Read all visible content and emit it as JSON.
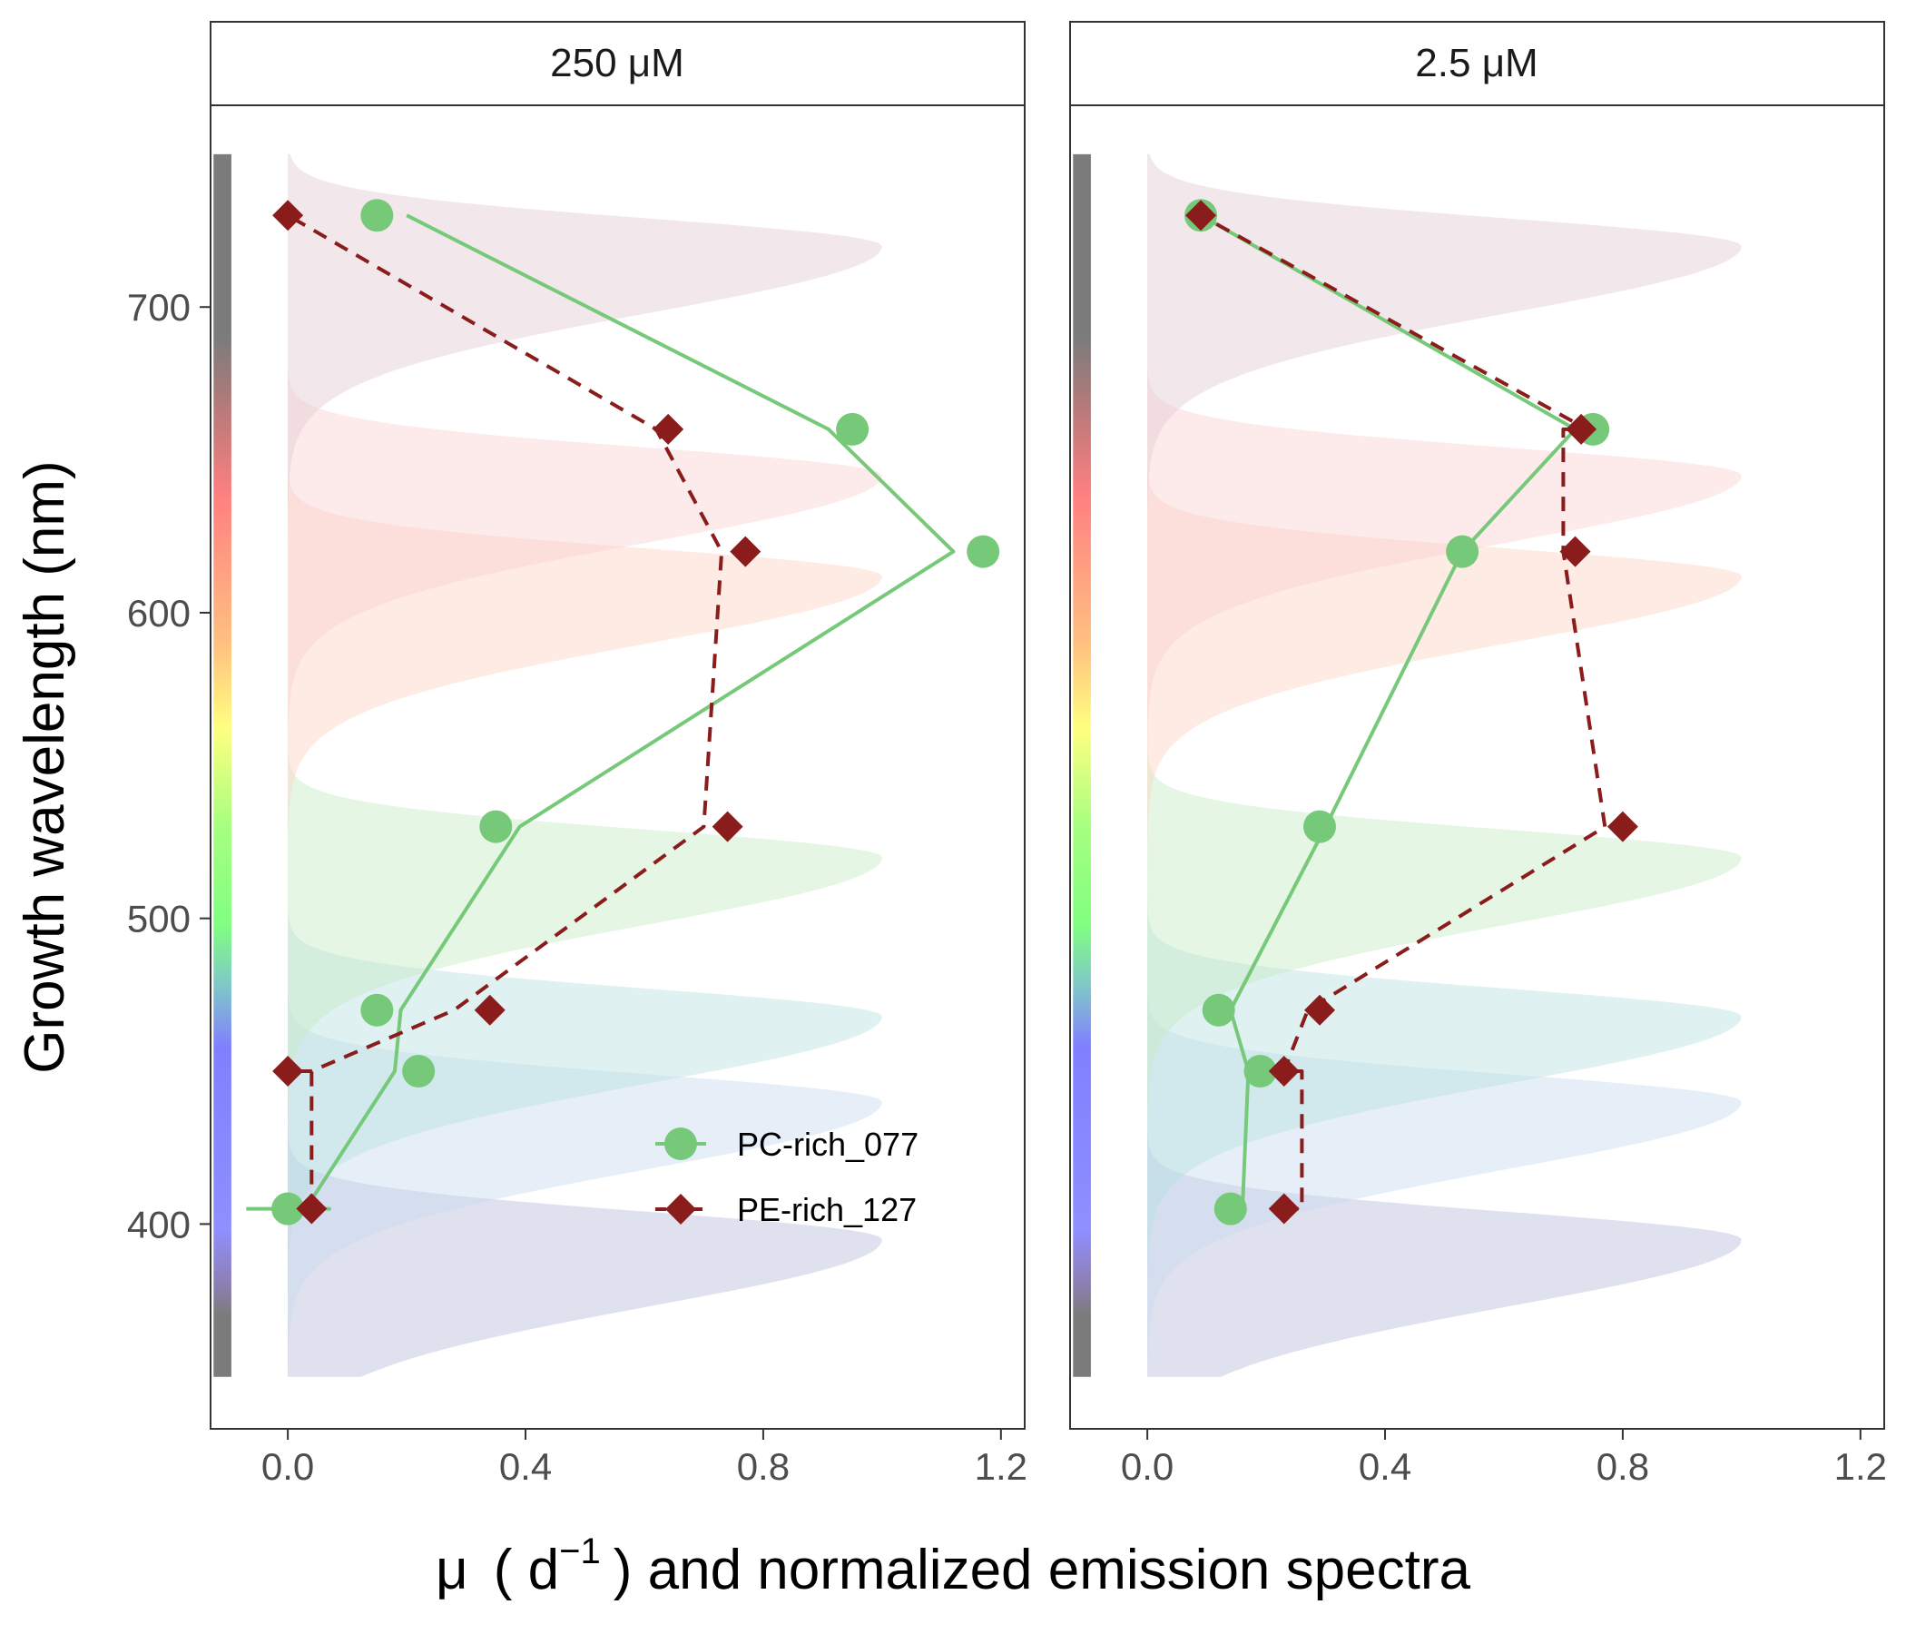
{
  "chart_data": {
    "type": "line",
    "ylabel": "Growth wavelength (nm)",
    "xlabel_parts": [
      "μ",
      "( d",
      "−1",
      ") and normalized emission spectra"
    ],
    "xlim": [
      -0.13,
      1.24
    ],
    "ylim": [
      333,
      766
    ],
    "xticks": [
      0.0,
      0.4,
      0.8,
      1.2
    ],
    "xtick_labels": [
      "0.0",
      "0.4",
      "0.8",
      "1.2"
    ],
    "yticks": [
      400,
      500,
      600,
      700
    ],
    "ytick_labels": [
      "400",
      "500",
      "600",
      "700"
    ],
    "grid": false,
    "legend_placement": "lower-right of left panel",
    "wavelength_bar_range": [
      350,
      750
    ],
    "spectra": [
      {
        "peak": 395,
        "color": "#b8bdd9"
      },
      {
        "peak": 440,
        "color": "#c8dcf0"
      },
      {
        "peak": 468,
        "color": "#b8e0e0"
      },
      {
        "peak": 520,
        "color": "#c6ecc3"
      },
      {
        "peak": 612,
        "color": "#fcd3c2"
      },
      {
        "peak": 645,
        "color": "#fbd0d0"
      },
      {
        "peak": 720,
        "color": "#e3ccd3"
      }
    ],
    "series_styles": [
      {
        "color": "#77c97a",
        "marker": "circle",
        "line": "solid"
      },
      {
        "color": "#8b1c1c",
        "marker": "diamond",
        "line": "dashed"
      }
    ],
    "panels": [
      {
        "strip": "250 μM",
        "series": [
          {
            "name": "PC-rich_077",
            "points": [
              [
                0.0,
                405
              ],
              [
                0.22,
                450
              ],
              [
                0.15,
                470
              ],
              [
                0.35,
                530
              ],
              [
                1.17,
                620
              ],
              [
                0.95,
                660
              ],
              [
                0.15,
                730
              ]
            ],
            "fit": [
              [
                -0.07,
                405
              ],
              [
                0.07,
                405
              ],
              [
                0.03,
                405
              ],
              [
                0.18,
                450
              ],
              [
                0.19,
                470
              ],
              [
                0.39,
                530
              ],
              [
                1.12,
                620
              ],
              [
                0.91,
                660
              ],
              [
                0.2,
                730
              ]
            ]
          },
          {
            "name": "PE-rich_127",
            "points": [
              [
                0.04,
                405
              ],
              [
                0.0,
                450
              ],
              [
                0.34,
                470
              ],
              [
                0.74,
                530
              ],
              [
                0.77,
                620
              ],
              [
                0.64,
                660
              ],
              [
                0.0,
                730
              ]
            ],
            "fit": [
              [
                0.04,
                405
              ],
              [
                0.04,
                450
              ],
              [
                0.0,
                450
              ],
              [
                0.04,
                450
              ],
              [
                0.28,
                470
              ],
              [
                0.7,
                530
              ],
              [
                0.73,
                620
              ],
              [
                0.62,
                660
              ],
              [
                0.0,
                730
              ]
            ]
          }
        ]
      },
      {
        "strip": "2.5 μM",
        "series": [
          {
            "name": "PC-rich_077",
            "points": [
              [
                0.14,
                405
              ],
              [
                0.19,
                450
              ],
              [
                0.12,
                470
              ],
              [
                0.29,
                530
              ],
              [
                0.53,
                620
              ],
              [
                0.75,
                660
              ],
              [
                0.09,
                730
              ]
            ],
            "fit": [
              [
                0.16,
                405
              ],
              [
                0.17,
                450
              ],
              [
                0.14,
                470
              ],
              [
                0.3,
                530
              ],
              [
                0.53,
                620
              ],
              [
                0.72,
                660
              ],
              [
                0.09,
                730
              ]
            ]
          },
          {
            "name": "PE-rich_127",
            "points": [
              [
                0.23,
                405
              ],
              [
                0.23,
                450
              ],
              [
                0.29,
                470
              ],
              [
                0.8,
                530
              ],
              [
                0.72,
                620
              ],
              [
                0.73,
                660
              ],
              [
                0.09,
                730
              ]
            ],
            "fit": [
              [
                0.23,
                405
              ],
              [
                0.26,
                405
              ],
              [
                0.26,
                450
              ],
              [
                0.23,
                450
              ],
              [
                0.27,
                470
              ],
              [
                0.77,
                530
              ],
              [
                0.7,
                620
              ],
              [
                0.7,
                660
              ],
              [
                0.74,
                660
              ],
              [
                0.09,
                730
              ]
            ]
          }
        ]
      }
    ]
  }
}
